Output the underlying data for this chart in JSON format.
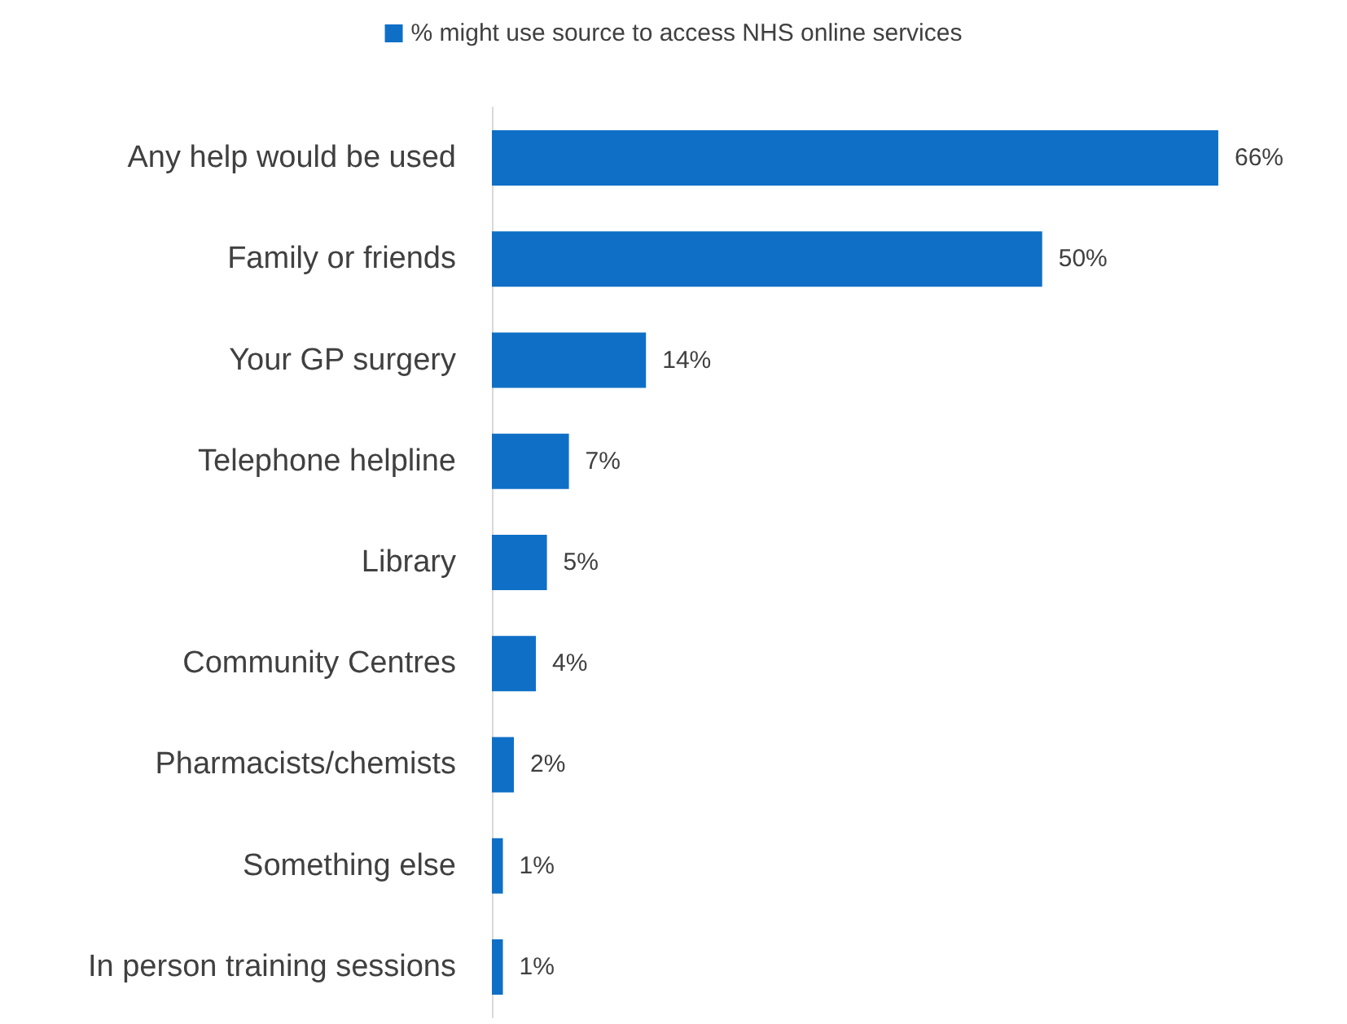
{
  "chart_data": {
    "type": "bar",
    "orientation": "horizontal",
    "legend": "top",
    "categories": [
      "Any help would be used",
      "Family or friends",
      "Your GP surgery",
      "Telephone helpline",
      "Library",
      "Community Centres",
      "Pharmacists/chemists",
      "Something else",
      "In person training sessions"
    ],
    "series": [
      {
        "name": "% might use source to access NHS online services",
        "color": "#0f6fc6",
        "values": [
          66,
          50,
          14,
          7,
          5,
          4,
          2,
          1,
          1
        ],
        "value_labels": [
          "66%",
          "50%",
          "14%",
          "7%",
          "5%",
          "4%",
          "2%",
          "1%",
          "1%"
        ]
      }
    ]
  }
}
